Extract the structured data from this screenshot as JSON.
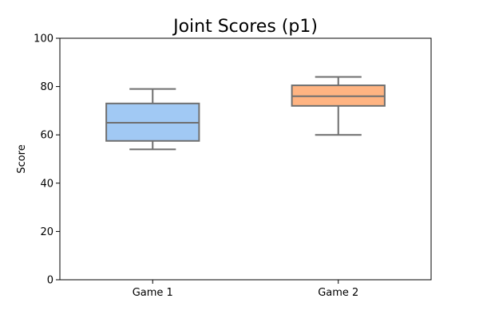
{
  "chart_data": {
    "type": "boxplot",
    "title": "Joint Scores (p1)",
    "xlabel": "",
    "ylabel": "Score",
    "ylim": [
      0,
      100
    ],
    "yticks": [
      0,
      20,
      40,
      60,
      80,
      100
    ],
    "y_tick_labels": [
      "0",
      "20",
      "40",
      "60",
      "80",
      "100"
    ],
    "categories": [
      "Game 1",
      "Game 2"
    ],
    "boxes": [
      {
        "category": "Game 1",
        "whisker_low": 54,
        "q1": 57.5,
        "median": 65,
        "q3": 73,
        "whisker_high": 79,
        "color": "#a1c9f4"
      },
      {
        "category": "Game 2",
        "whisker_low": 60,
        "q1": 72,
        "median": 76,
        "q3": 80.5,
        "whisker_high": 84,
        "color": "#ffb482"
      }
    ],
    "line_color": "#6f6f6f",
    "grid": false,
    "legend": "none"
  }
}
